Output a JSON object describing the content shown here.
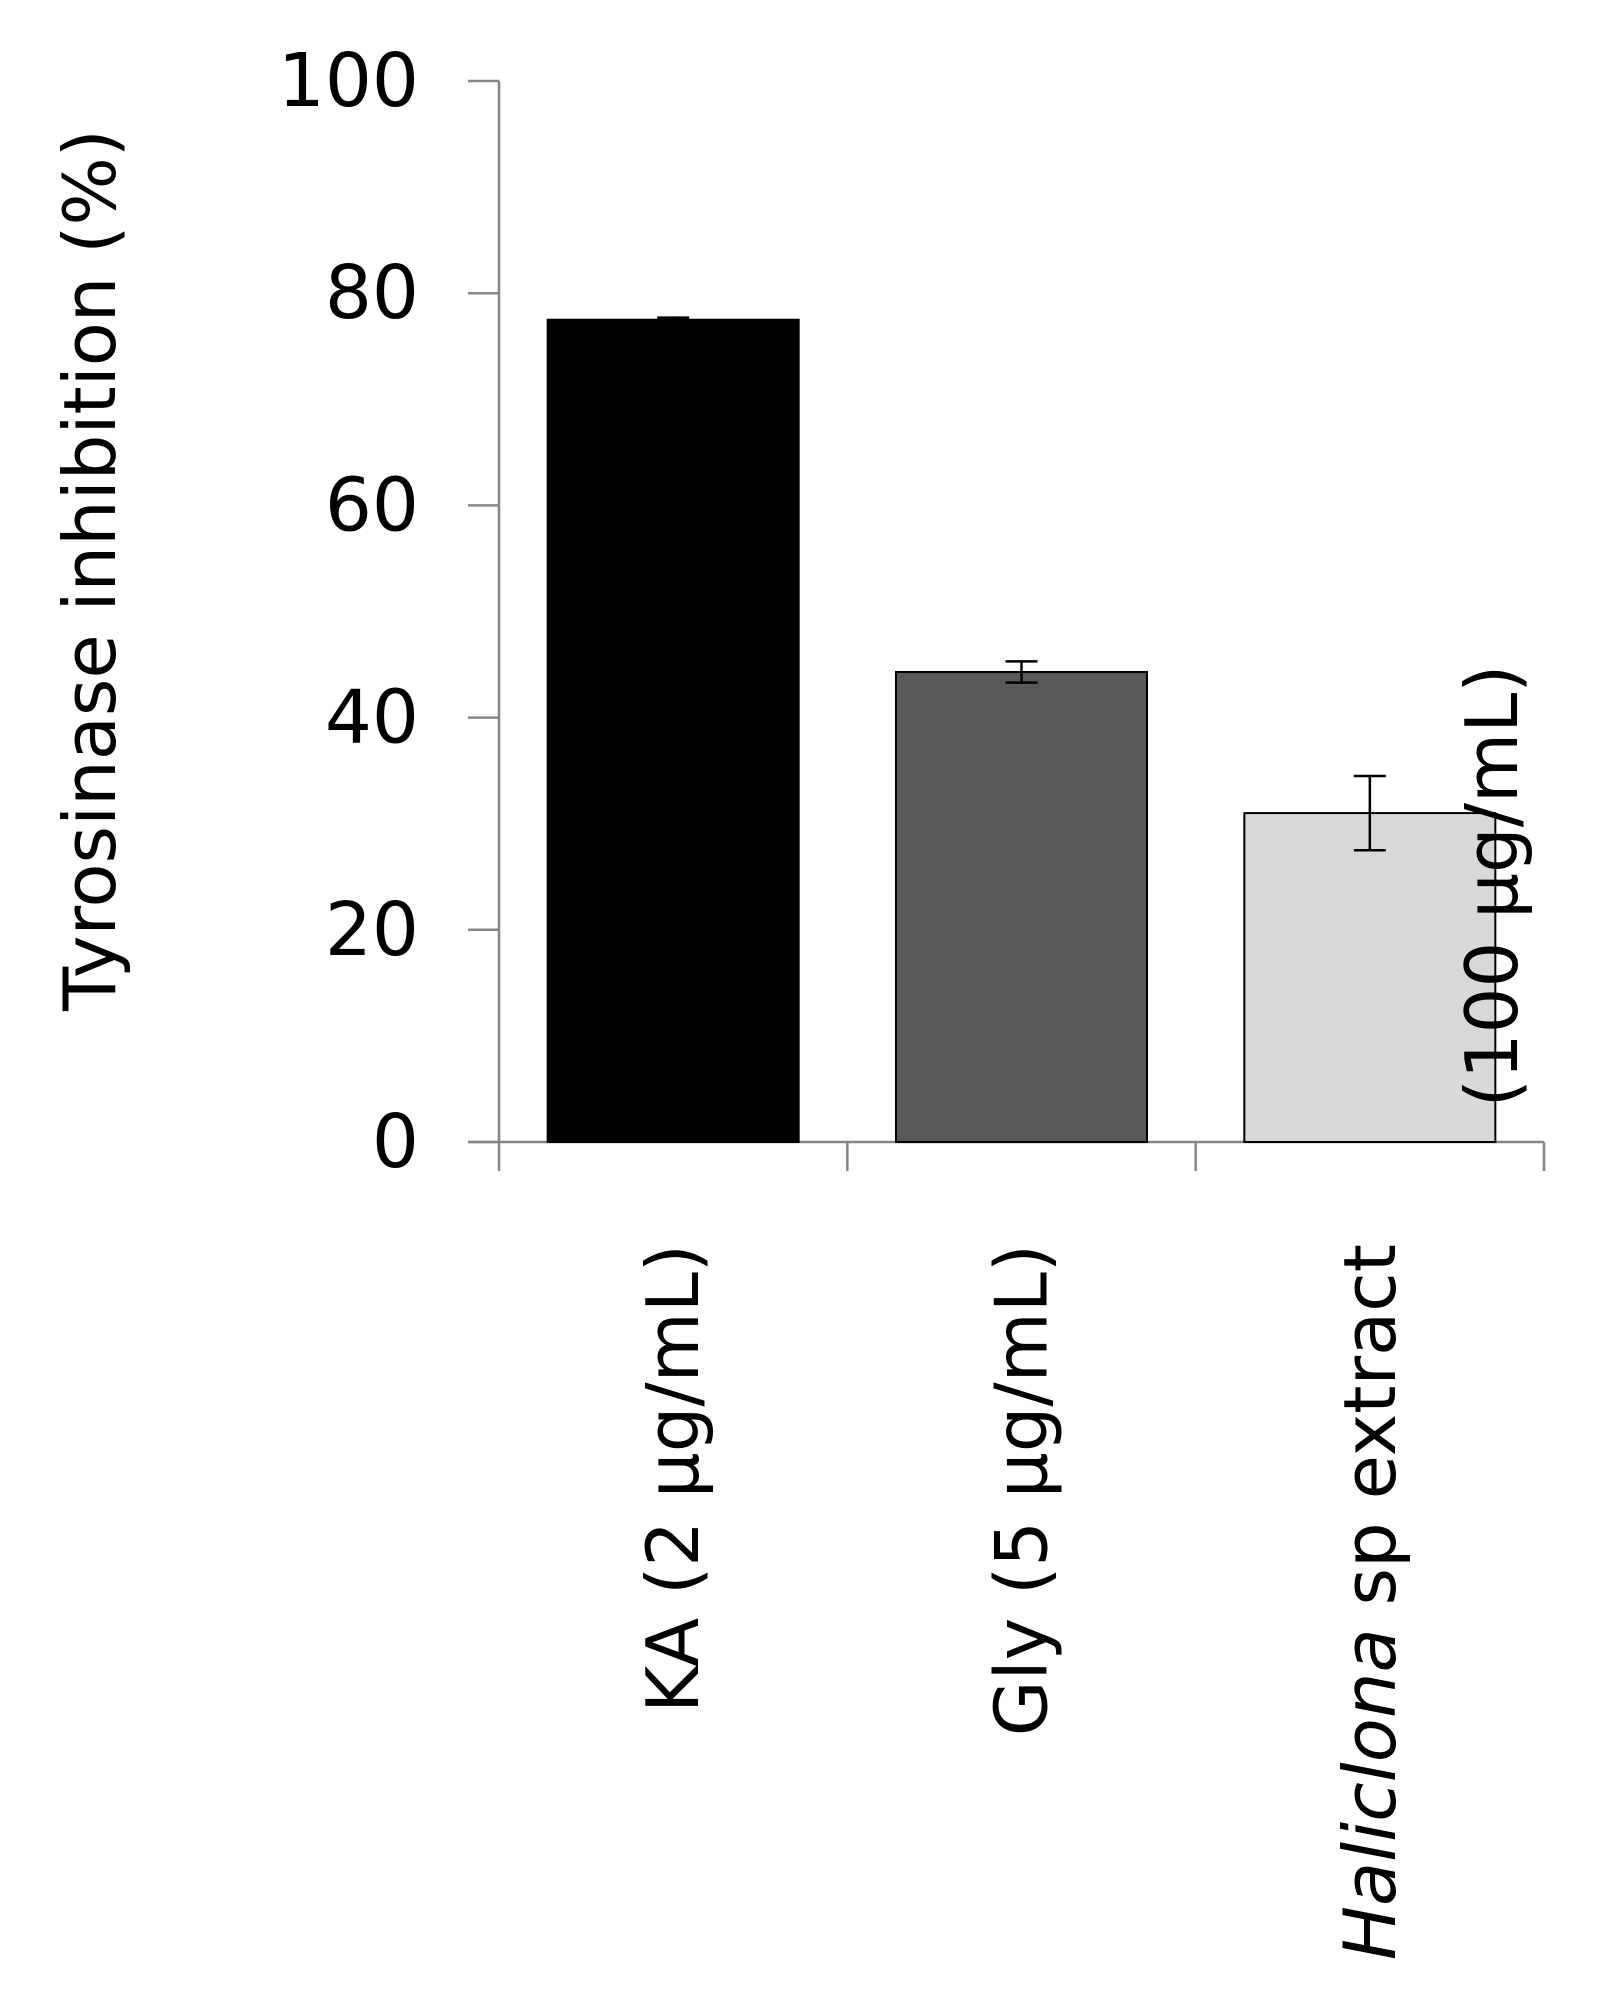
{
  "chart_data": {
    "type": "bar",
    "y_label": "Tyrosinase inhibition (%)",
    "categories": [
      [
        [
          {
            "text": "KA (2 µg/mL)"
          }
        ]
      ],
      [
        [
          {
            "text": "Gly (5 µg/mL)"
          }
        ]
      ],
      [
        [
          {
            "text": "Haliclona",
            "italic": true
          },
          {
            "text": " sp extract"
          }
        ],
        [
          {
            "text": "(100 µg/mL)"
          }
        ]
      ]
    ],
    "values": [
      77.5,
      44.3,
      31
    ],
    "errors": [
      0.2,
      1,
      3.5
    ],
    "colors": [
      "#000000",
      "#595959",
      "#d9d9d9"
    ],
    "ylim": [
      0,
      100
    ],
    "yticks": [
      0,
      20,
      40,
      60,
      80,
      100
    ],
    "grid": false
  }
}
